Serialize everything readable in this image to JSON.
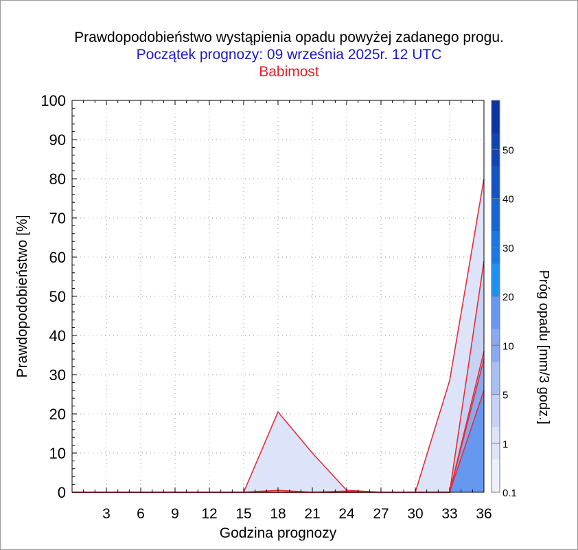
{
  "title": "Prawdopodobieństwo wystąpienia opadu powyżej zadanego progu.",
  "subtitle": "Początek prognozy: 09 września 2025r. 12 UTC",
  "location": "Babimost",
  "colors": {
    "title": "#000000",
    "subtitle": "#1a1acc",
    "location": "#e0202a",
    "outline": "#e0303a"
  },
  "chart_data": {
    "type": "area",
    "title": "Prawdopodobieństwo wystąpienia opadu powyżej zadanego progu.",
    "subtitle": "Początek prognozy: 09 września 2025r. 12 UTC",
    "xlabel": "Godzina prognozy",
    "ylabel": "Prawdopodobieństwo [%]",
    "xlim": [
      0,
      36
    ],
    "ylim": [
      0,
      100
    ],
    "x": [
      0,
      3,
      6,
      9,
      12,
      15,
      18,
      21,
      24,
      27,
      30,
      33,
      36
    ],
    "xticks": [
      3,
      6,
      9,
      12,
      15,
      18,
      21,
      24,
      27,
      30,
      33,
      36
    ],
    "yticks": [
      0,
      10,
      20,
      30,
      40,
      50,
      60,
      70,
      80,
      90,
      100
    ],
    "grid": true,
    "series": [
      {
        "name": "0.1",
        "color": "#dde3f8",
        "values": [
          0,
          0,
          0,
          0,
          0,
          0,
          20.5,
          10,
          0.5,
          0,
          0,
          28.5,
          80
        ]
      },
      {
        "name": "1",
        "color": "#c8d2f3",
        "values": [
          0,
          0,
          0,
          0,
          0,
          0,
          0.5,
          0,
          0.3,
          0,
          0,
          0,
          59
        ]
      },
      {
        "name": "5",
        "color": "#aabef0",
        "values": [
          0,
          0,
          0,
          0,
          0,
          0,
          0,
          0,
          0,
          0,
          0,
          0,
          36
        ]
      },
      {
        "name": "10",
        "color": "#8aa8ee",
        "values": [
          0,
          0,
          0,
          0,
          0,
          0,
          0,
          0,
          0,
          0,
          0,
          0,
          34
        ]
      },
      {
        "name": "20",
        "color": "#6698f0",
        "values": [
          0,
          0,
          0,
          0,
          0,
          0,
          0,
          0,
          0,
          0,
          0,
          0,
          26
        ]
      }
    ],
    "colorbar": {
      "label": "Próg opadu [mm/3 godz.]",
      "tick_labels": [
        "0.1",
        "1",
        "5",
        "10",
        "20",
        "30",
        "40",
        "50"
      ],
      "band_colors": [
        "#eef1fb",
        "#dde3f8",
        "#c8d2f3",
        "#aabef0",
        "#8aa8ee",
        "#6698f0",
        "#1e90f0",
        "#1a78e0",
        "#1865d0",
        "#1553c0",
        "#1244b0",
        "#0d35a0"
      ]
    }
  }
}
